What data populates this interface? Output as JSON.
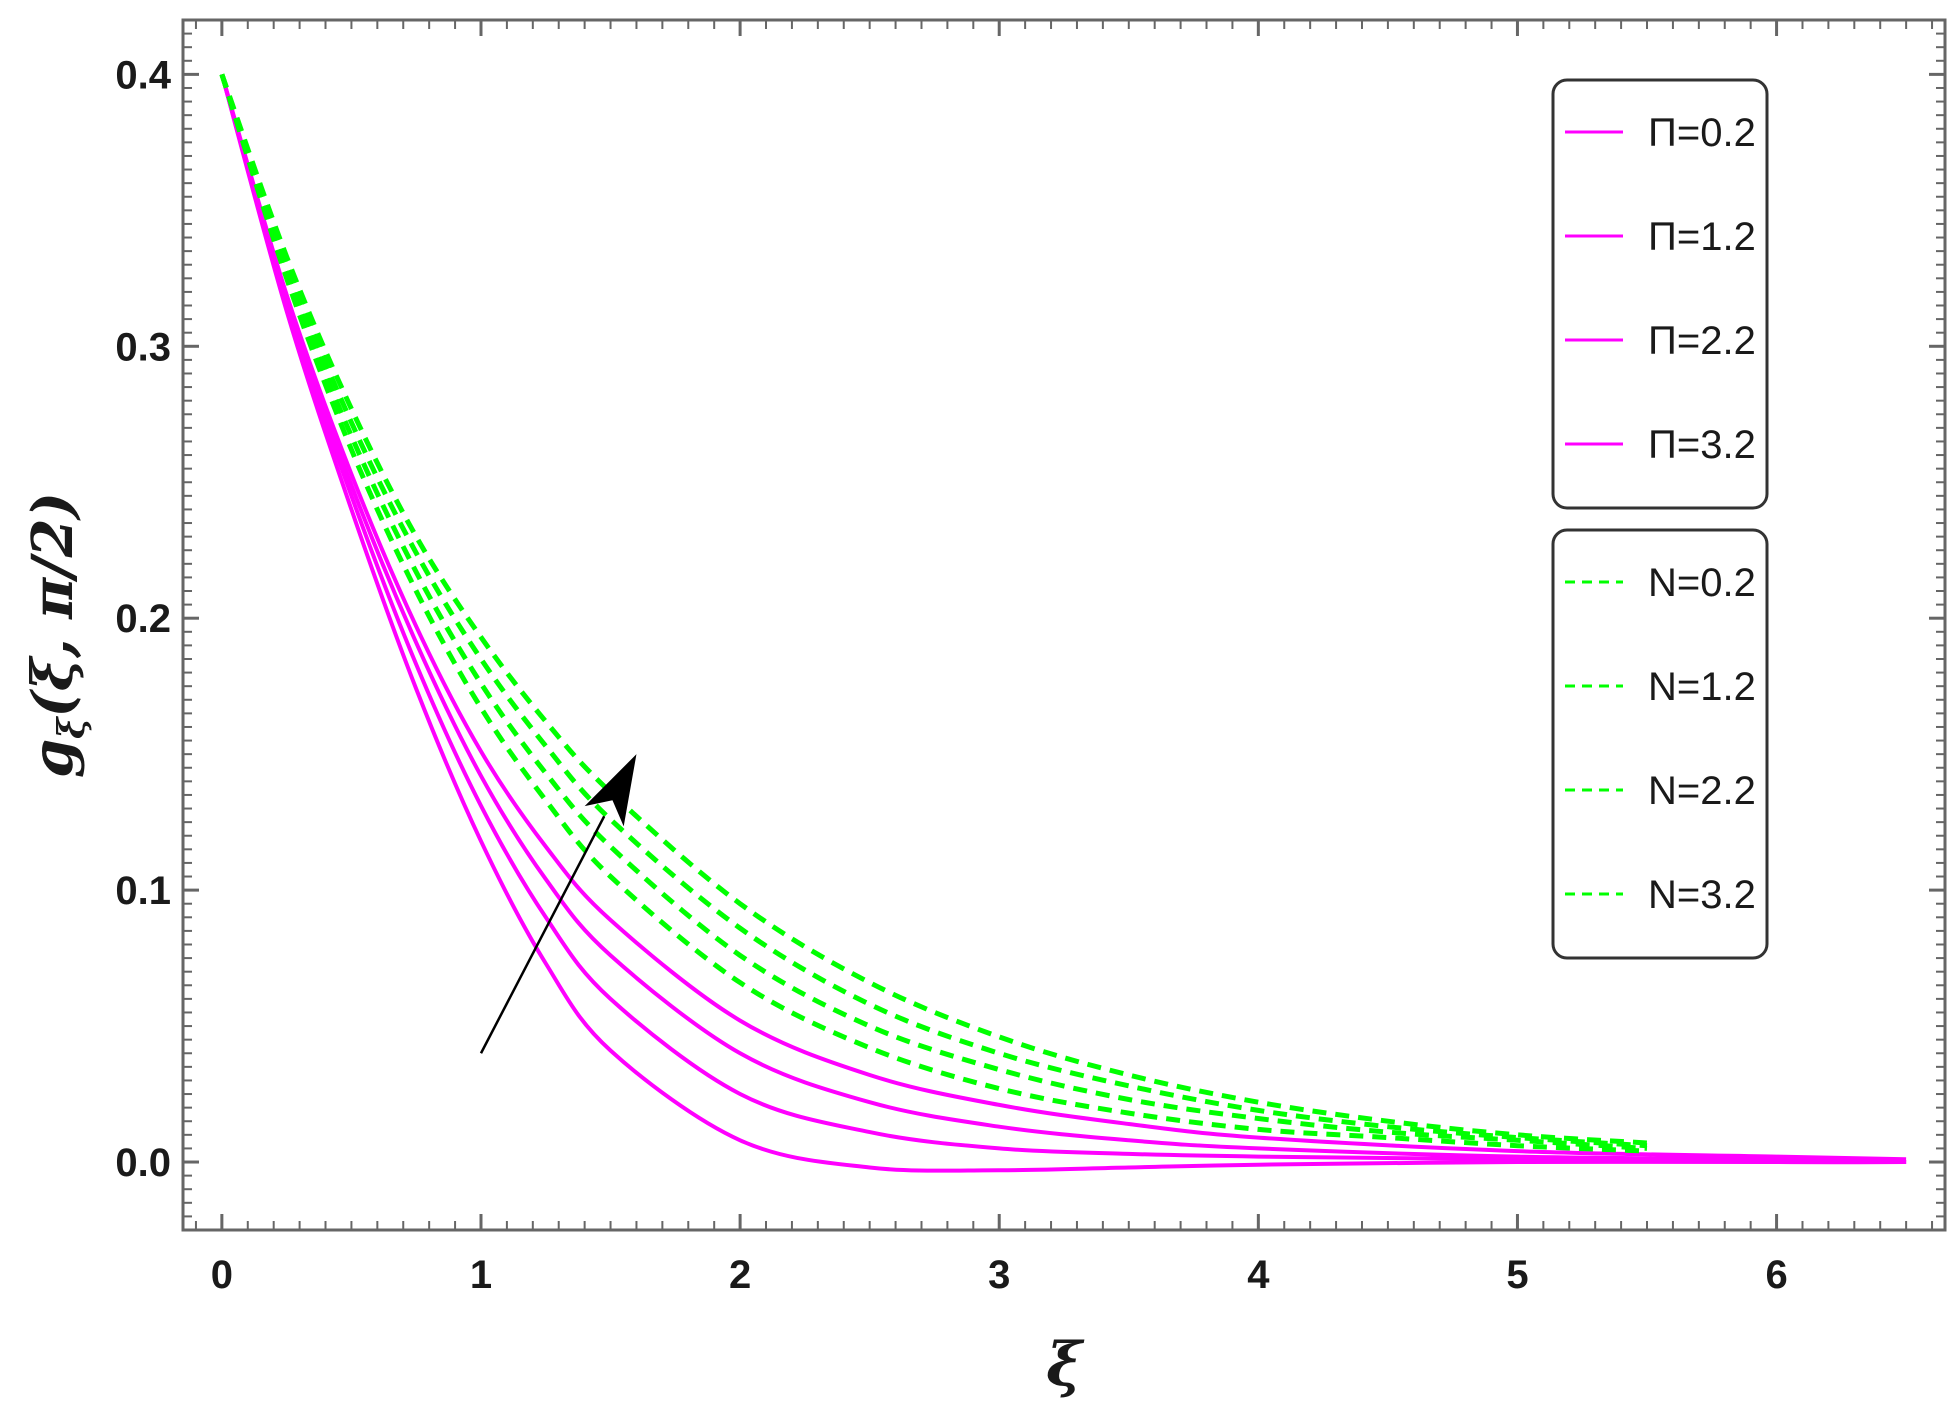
{
  "chart_data": {
    "type": "line",
    "xlabel": "ξ",
    "ylabel": "g_ξ(ξ, π/2)",
    "ylabel_main": "g",
    "ylabel_sub": "ξ",
    "ylabel_rest": "(ξ, π/2)",
    "xlim": [
      -0.15,
      6.65
    ],
    "ylim": [
      -0.025,
      0.42
    ],
    "x_ticks": [
      "0",
      "1",
      "2",
      "3",
      "4",
      "5",
      "6"
    ],
    "y_ticks": [
      "0.0",
      "0.1",
      "0.2",
      "0.3",
      "0.4"
    ],
    "series": [
      {
        "name": "Π=0.2",
        "group": "Pi",
        "color": "#ff00ff",
        "style": "solid",
        "x": [
          0,
          0.25,
          0.5,
          0.75,
          1,
          1.25,
          1.5,
          2,
          2.5,
          3,
          3.5,
          4,
          5,
          6,
          6.5
        ],
        "y": [
          0.4,
          0.313,
          0.24,
          0.174,
          0.118,
          0.073,
          0.041,
          0.008,
          -0.002,
          -0.003,
          -0.002,
          -0.001,
          0.0,
          0.0,
          0.0
        ]
      },
      {
        "name": "Π=1.2",
        "group": "Pi",
        "color": "#ff00ff",
        "style": "solid",
        "x": [
          0,
          0.25,
          0.5,
          0.75,
          1,
          1.25,
          1.5,
          2,
          2.5,
          3,
          3.5,
          4,
          5,
          6,
          6.5
        ],
        "y": [
          0.4,
          0.315,
          0.245,
          0.183,
          0.131,
          0.09,
          0.06,
          0.025,
          0.011,
          0.005,
          0.003,
          0.002,
          0.001,
          0.0,
          0.0
        ]
      },
      {
        "name": "Π=2.2",
        "group": "Pi",
        "color": "#ff00ff",
        "style": "solid",
        "x": [
          0,
          0.25,
          0.5,
          0.75,
          1,
          1.25,
          1.5,
          2,
          2.5,
          3,
          3.5,
          4,
          5,
          6,
          6.5
        ],
        "y": [
          0.4,
          0.317,
          0.249,
          0.191,
          0.142,
          0.104,
          0.076,
          0.04,
          0.022,
          0.013,
          0.008,
          0.005,
          0.002,
          0.001,
          0.0
        ]
      },
      {
        "name": "Π=3.2",
        "group": "Pi",
        "color": "#ff00ff",
        "style": "solid",
        "x": [
          0,
          0.25,
          0.5,
          0.75,
          1,
          1.25,
          1.5,
          2,
          2.5,
          3,
          3.5,
          4,
          5,
          6,
          6.5
        ],
        "y": [
          0.4,
          0.319,
          0.253,
          0.197,
          0.151,
          0.116,
          0.089,
          0.052,
          0.032,
          0.021,
          0.014,
          0.009,
          0.004,
          0.002,
          0.001
        ]
      },
      {
        "name": "N=0.2",
        "group": "N",
        "color": "#00ff00",
        "style": "dashed",
        "x": [
          0,
          0.25,
          0.5,
          0.75,
          1,
          1.25,
          1.5,
          2,
          2.5,
          3,
          3.5,
          4,
          4.5,
          5,
          5.5
        ],
        "y": [
          0.4,
          0.325,
          0.262,
          0.21,
          0.167,
          0.133,
          0.105,
          0.066,
          0.042,
          0.027,
          0.018,
          0.012,
          0.009,
          0.006,
          0.004
        ]
      },
      {
        "name": "N=1.2",
        "group": "N",
        "color": "#00ff00",
        "style": "dashed",
        "x": [
          0,
          0.25,
          0.5,
          0.75,
          1,
          1.25,
          1.5,
          2,
          2.5,
          3,
          3.5,
          4,
          4.5,
          5,
          5.5
        ],
        "y": [
          0.4,
          0.327,
          0.267,
          0.217,
          0.176,
          0.143,
          0.116,
          0.076,
          0.05,
          0.034,
          0.023,
          0.016,
          0.011,
          0.008,
          0.005
        ]
      },
      {
        "name": "N=2.2",
        "group": "N",
        "color": "#00ff00",
        "style": "dashed",
        "x": [
          0,
          0.25,
          0.5,
          0.75,
          1,
          1.25,
          1.5,
          2,
          2.5,
          3,
          3.5,
          4,
          4.5,
          5,
          5.5
        ],
        "y": [
          0.4,
          0.33,
          0.272,
          0.224,
          0.185,
          0.153,
          0.126,
          0.086,
          0.058,
          0.04,
          0.028,
          0.019,
          0.013,
          0.009,
          0.006
        ]
      },
      {
        "name": "N=3.2",
        "group": "N",
        "color": "#00ff00",
        "style": "dashed",
        "x": [
          0,
          0.25,
          0.5,
          0.75,
          1,
          1.25,
          1.5,
          2,
          2.5,
          3,
          3.5,
          4,
          4.5,
          5,
          5.5
        ],
        "y": [
          0.4,
          0.333,
          0.277,
          0.23,
          0.193,
          0.162,
          0.136,
          0.095,
          0.066,
          0.046,
          0.032,
          0.022,
          0.015,
          0.01,
          0.007
        ]
      }
    ],
    "annotations": [
      {
        "type": "arrow",
        "from": [
          1.0,
          0.04
        ],
        "to": [
          1.6,
          0.15
        ],
        "color": "#000000"
      }
    ],
    "legend": {
      "placement": "top-right",
      "groups": [
        "Pi",
        "N"
      ]
    },
    "grid": false
  }
}
